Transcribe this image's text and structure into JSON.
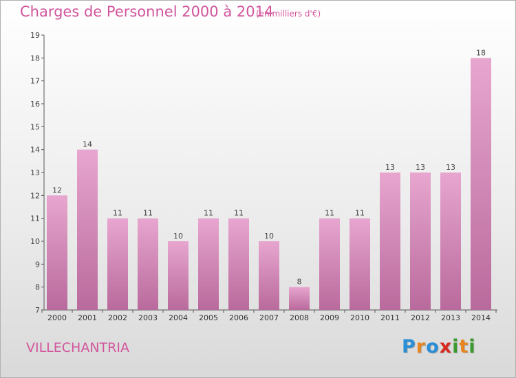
{
  "header": {
    "title": "Charges de Personnel 2000 à 2014",
    "subtitle": "(en milliers d'€)"
  },
  "footer": {
    "commune": "VILLECHANTRIA",
    "logo_text": "Proxiti",
    "logo_colors": [
      "#2a8fd6",
      "#e8851e",
      "#2a8fd6",
      "#d6291f",
      "#3c9a2e",
      "#e8851e",
      "#3c9a2e"
    ]
  },
  "chart_data": {
    "type": "bar",
    "categories": [
      "2000",
      "2001",
      "2002",
      "2003",
      "2004",
      "2005",
      "2006",
      "2007",
      "2008",
      "2009",
      "2010",
      "2011",
      "2012",
      "2013",
      "2014"
    ],
    "values": [
      12,
      14,
      11,
      11,
      10,
      11,
      11,
      10,
      8,
      11,
      11,
      13,
      13,
      13,
      18
    ],
    "data_labels": [
      "12",
      "14",
      "11",
      "11",
      "10",
      "11",
      "11",
      "10",
      "8",
      "11",
      "11",
      "13",
      "13",
      "13",
      "18"
    ],
    "ylim": [
      7,
      19
    ],
    "yticks": [
      7,
      8,
      9,
      10,
      11,
      12,
      13,
      14,
      15,
      16,
      17,
      18,
      19
    ],
    "grid": false,
    "bar_color": "#dc8fbf",
    "bar_color_dark": "#b96a9c"
  }
}
